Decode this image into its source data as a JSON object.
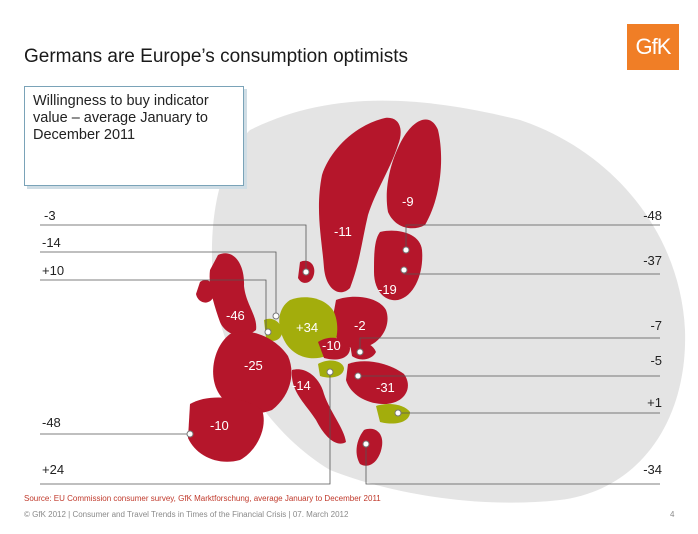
{
  "header": {
    "title": "Germans are Europe’s consumption optimists",
    "logo_text": "GfK"
  },
  "legend": {
    "text": "Willingness to buy indicator value – average January to December 2011"
  },
  "colors": {
    "negative": "#b5162b",
    "positive": "#a3ad0c",
    "background_land": "#e4e4e4",
    "callout_line": "#555555"
  },
  "countries": [
    {
      "name": "Finland",
      "value": "-9"
    },
    {
      "name": "Sweden",
      "value": "-11"
    },
    {
      "name": "Baltic",
      "value": "-19"
    },
    {
      "name": "Poland",
      "value": "-2"
    },
    {
      "name": "Germany",
      "value": "+34"
    },
    {
      "name": "United Kingdom",
      "value": "-46"
    },
    {
      "name": "France",
      "value": "-25"
    },
    {
      "name": "Czech Republic",
      "value": "-10"
    },
    {
      "name": "Italy",
      "value": "-14"
    },
    {
      "name": "Hungary / Romania",
      "value": "-31"
    },
    {
      "name": "Spain",
      "value": "-10"
    }
  ],
  "callouts": {
    "left": [
      "-3",
      "-14",
      "+10",
      "-48",
      "+24"
    ],
    "right": [
      "-48",
      "-37",
      "-7",
      "-5",
      "+1",
      "-34"
    ]
  },
  "footer": {
    "source": "Source: EU Commission consumer survey, GfK Marktforschung, average January to December 2011",
    "copyright": "© GfK 2012 | Consumer and Travel Trends in Times of the Financial Crisis | 07. March 2012",
    "page": "4"
  }
}
